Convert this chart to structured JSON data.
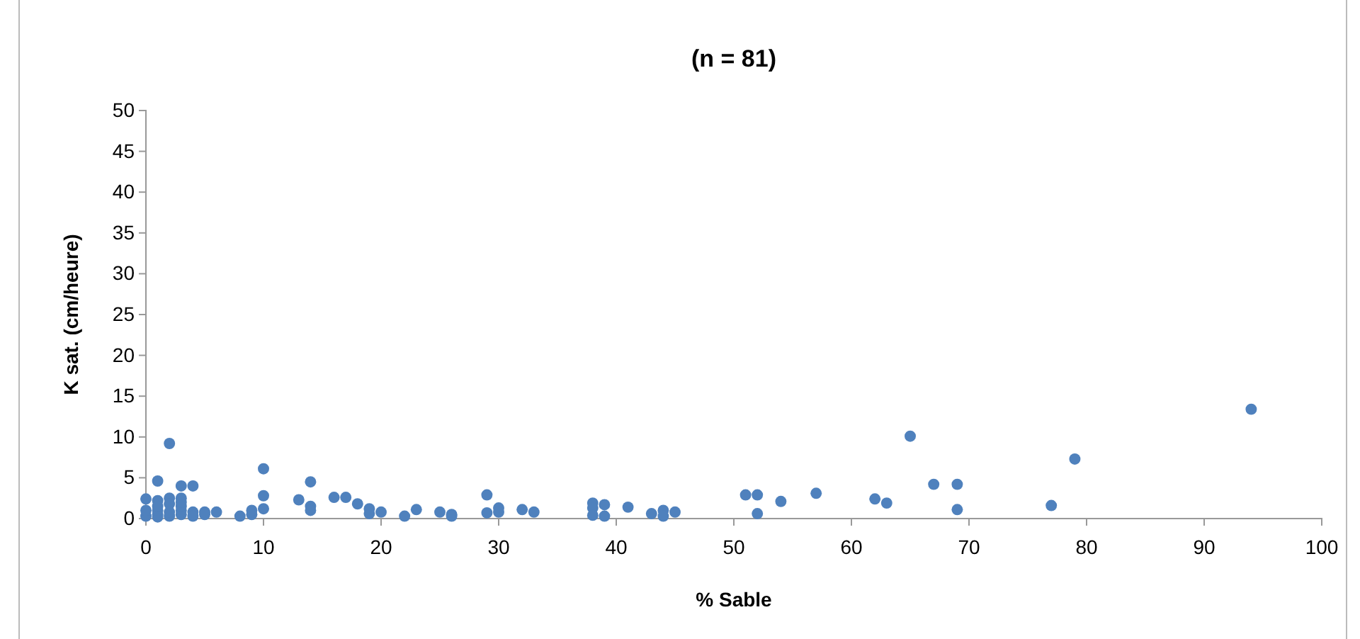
{
  "chart_data": {
    "type": "scatter",
    "title": "(n = 81)",
    "xlabel": "% Sable",
    "ylabel": "K sat. (cm/heure)",
    "xlim": [
      0,
      100
    ],
    "xticks": [
      0,
      10,
      20,
      30,
      40,
      50,
      60,
      70,
      80,
      90,
      100
    ],
    "ylim": [
      0,
      50
    ],
    "yticks": [
      0,
      5,
      10,
      15,
      20,
      25,
      30,
      35,
      40,
      45,
      50
    ],
    "grid": false,
    "marker": "circle",
    "series": [
      {
        "color": "#4f81bd",
        "x": [
          0,
          0,
          0,
          1,
          1,
          1,
          1,
          1,
          1,
          2,
          2,
          2,
          2,
          2,
          3,
          3,
          3,
          3,
          3,
          3,
          4,
          4,
          4,
          5,
          5,
          6,
          8,
          9,
          9,
          10,
          10,
          10,
          13,
          14,
          14,
          14,
          16,
          17,
          18,
          19,
          19,
          20,
          22,
          23,
          25,
          26,
          26,
          29,
          29,
          30,
          30,
          32,
          33,
          38,
          38,
          38,
          39,
          39,
          41,
          43,
          44,
          44,
          45,
          51,
          52,
          52,
          54,
          57,
          62,
          63,
          65,
          67,
          69,
          69,
          77,
          79,
          94
        ],
        "values": [
          2.4,
          0.3,
          1,
          4.6,
          2.2,
          0.5,
          0.2,
          1,
          1.5,
          9.2,
          2.5,
          1.8,
          0.3,
          0.8,
          4,
          2.5,
          1,
          0.5,
          1.5,
          2,
          4,
          0.8,
          0.3,
          0.8,
          0.5,
          0.8,
          0.3,
          0.5,
          1,
          6.1,
          2.8,
          1.2,
          2.3,
          4.5,
          1.5,
          1,
          2.6,
          2.6,
          1.8,
          1.2,
          0.6,
          0.8,
          0.3,
          1.1,
          0.8,
          0.5,
          0.3,
          2.9,
          0.7,
          1.3,
          0.8,
          1.1,
          0.8,
          1.9,
          1.3,
          0.4,
          1.7,
          0.3,
          1.4,
          0.6,
          1,
          0.3,
          0.8,
          2.9,
          2.9,
          0.6,
          2.1,
          3.1,
          2.4,
          1.9,
          10.1,
          4.2,
          4.2,
          1.1,
          1.6,
          7.3,
          13.4
        ]
      }
    ]
  }
}
